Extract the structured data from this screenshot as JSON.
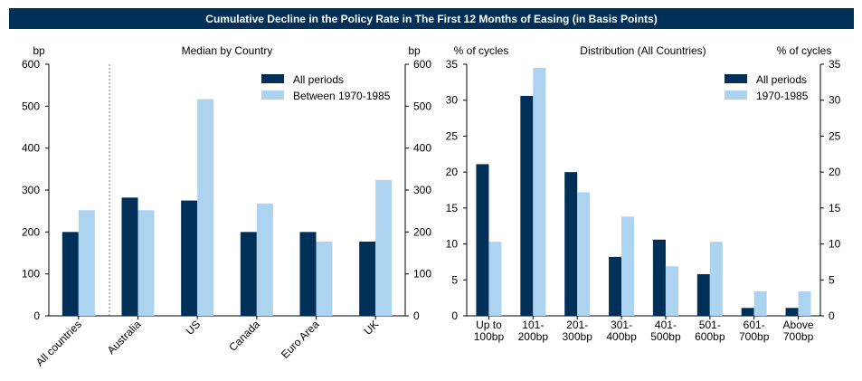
{
  "page_title": "Cumulative Decline in the Policy Rate in The First 12 Months of Easing (in Basis Points)",
  "colors": {
    "dark": "#003057",
    "light": "#acd4f0",
    "banner": "#003057"
  },
  "chart_data": [
    {
      "type": "bar",
      "title": "Median by Country",
      "ylabel_left": "bp",
      "ylabel_right": "bp",
      "ylim": [
        0,
        600
      ],
      "yticks": [
        "0",
        "100",
        "200",
        "300",
        "400",
        "500",
        "600"
      ],
      "categories": [
        "All countries",
        "Australia",
        "US",
        "Canada",
        "Euro Area",
        "UK"
      ],
      "series": [
        {
          "name": "All periods",
          "values": [
            200,
            282,
            275,
            200,
            200,
            177
          ]
        },
        {
          "name": "Between 1970-1985",
          "values": [
            252,
            252,
            517,
            268,
            177,
            324
          ]
        }
      ]
    },
    {
      "type": "bar",
      "title": "Distribution (All Countries)",
      "ylabel_left": "% of cycles",
      "ylabel_right": "% of cycles",
      "ylim": [
        0,
        35
      ],
      "yticks": [
        "0",
        "5",
        "10",
        "15",
        "20",
        "25",
        "30",
        "35"
      ],
      "categories": [
        [
          "Up to",
          "100bp"
        ],
        [
          "101-",
          "200bp"
        ],
        [
          "201-",
          "300bp"
        ],
        [
          "301-",
          "400bp"
        ],
        [
          "401-",
          "500bp"
        ],
        [
          "501-",
          "600bp"
        ],
        [
          "601-",
          "700bp"
        ],
        [
          "Above",
          "700bp"
        ]
      ],
      "series": [
        {
          "name": "All periods",
          "values": [
            21.1,
            30.6,
            20.0,
            8.2,
            10.6,
            5.8,
            1.1,
            1.1
          ]
        },
        {
          "name": "1970-1985",
          "values": [
            10.3,
            34.5,
            17.2,
            13.8,
            6.9,
            10.3,
            3.4,
            3.4
          ]
        }
      ]
    }
  ]
}
